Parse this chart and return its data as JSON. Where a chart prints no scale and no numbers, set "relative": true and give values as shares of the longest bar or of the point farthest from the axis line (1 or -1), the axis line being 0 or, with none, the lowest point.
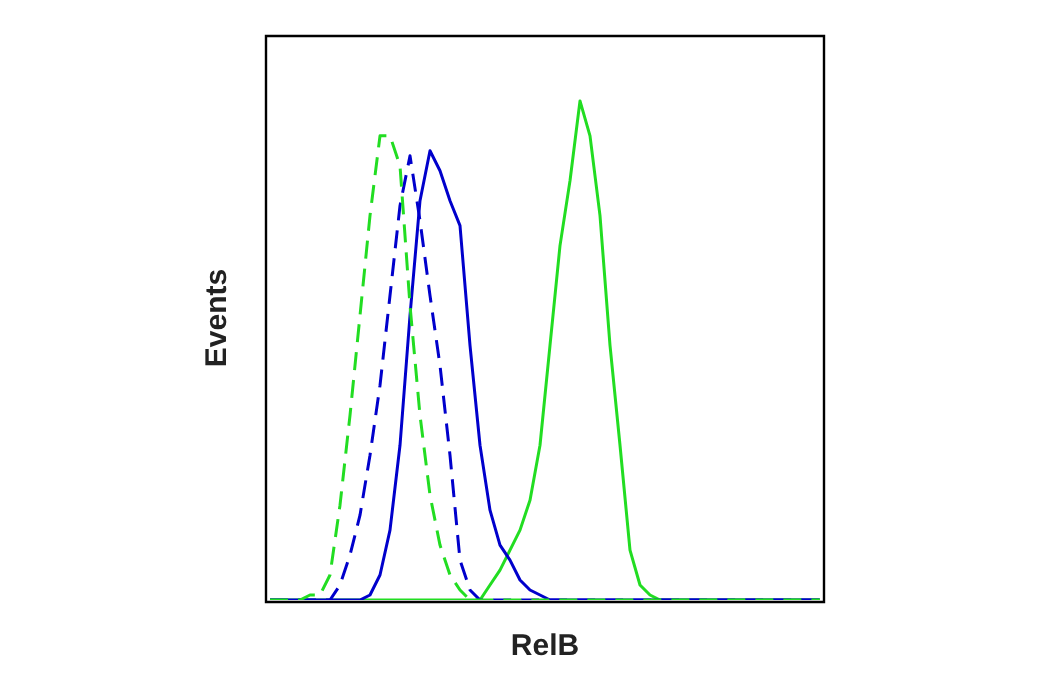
{
  "chart_data": {
    "type": "line",
    "relative": true,
    "xlabel": "RelB",
    "ylabel": "Events",
    "legend": false,
    "marker": "none",
    "categories": [
      null,
      null,
      null,
      null,
      null,
      null,
      null,
      null,
      null,
      null,
      null,
      null,
      null,
      null,
      null,
      null,
      null,
      null,
      null,
      null,
      null,
      null,
      null,
      null,
      null,
      null,
      null,
      null,
      null,
      null,
      null,
      null,
      null,
      null,
      null,
      null,
      null,
      null,
      null,
      null,
      null,
      null,
      null,
      null,
      null,
      null,
      null,
      null,
      null,
      null,
      null,
      null,
      null,
      null,
      null,
      null
    ],
    "series": [
      {
        "color": "#22dd22",
        "line_style": "dashed",
        "values": [
          0,
          0,
          0,
          0,
          0.01,
          0.01,
          0.05,
          0.19,
          0.37,
          0.57,
          0.77,
          0.93,
          0.93,
          0.87,
          0.59,
          0.37,
          0.21,
          0.11,
          0.05,
          0.02,
          0,
          0,
          0,
          0,
          0,
          0,
          0,
          0,
          0,
          0,
          0,
          0,
          0,
          0,
          0,
          0,
          0,
          0,
          0,
          0,
          0,
          0,
          0,
          0,
          0,
          0,
          0,
          0,
          0,
          0,
          0,
          0,
          0,
          0,
          0,
          0
        ]
      },
      {
        "color": "#0000cc",
        "line_style": "dashed",
        "values": [
          0,
          0,
          0,
          0,
          0,
          0,
          0,
          0.03,
          0.09,
          0.17,
          0.29,
          0.43,
          0.61,
          0.79,
          0.89,
          0.76,
          0.61,
          0.47,
          0.29,
          0.08,
          0.02,
          0,
          0,
          0,
          0,
          0,
          0,
          0,
          0,
          0,
          0,
          0,
          0,
          0,
          0,
          0,
          0,
          0,
          0,
          0,
          0,
          0,
          0,
          0,
          0,
          0,
          0,
          0,
          0,
          0,
          0,
          0,
          0,
          0,
          0,
          0
        ]
      },
      {
        "color": "#0000cc",
        "line_style": "solid",
        "values": [
          0,
          0,
          0,
          0,
          0,
          0,
          0,
          0,
          0,
          0,
          0.01,
          0.05,
          0.14,
          0.31,
          0.57,
          0.8,
          0.9,
          0.86,
          0.8,
          0.75,
          0.51,
          0.31,
          0.18,
          0.11,
          0.08,
          0.04,
          0.02,
          0.01,
          0,
          0,
          0,
          0,
          0,
          0,
          0,
          0,
          0,
          0,
          0,
          0,
          0,
          0,
          0,
          0,
          0,
          0,
          0,
          0,
          0,
          0,
          0,
          0,
          0,
          0,
          0,
          0
        ]
      },
      {
        "color": "#22dd22",
        "line_style": "solid",
        "values": [
          0,
          0,
          0,
          0,
          0,
          0,
          0,
          0,
          0,
          0,
          0,
          0,
          0,
          0,
          0,
          0,
          0,
          0,
          0,
          0,
          0,
          0,
          0.03,
          0.06,
          0.1,
          0.14,
          0.2,
          0.31,
          0.51,
          0.71,
          0.84,
          1,
          0.93,
          0.77,
          0.51,
          0.31,
          0.1,
          0.03,
          0.01,
          0,
          0,
          0,
          0,
          0,
          0,
          0,
          0,
          0,
          0,
          0,
          0,
          0,
          0,
          0,
          0,
          0
        ]
      }
    ]
  }
}
